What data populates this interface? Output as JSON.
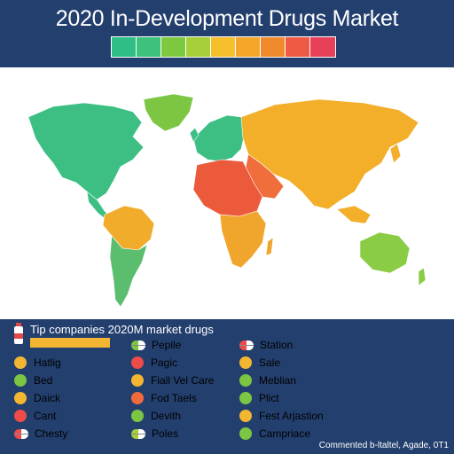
{
  "title": "2020 In-Development Drugs Market",
  "scale_colors": [
    "#2fbf86",
    "#3cc27a",
    "#7cc940",
    "#a6cf3a",
    "#f5c02c",
    "#f4a62a",
    "#f08a2c",
    "#ef5a45",
    "#e9405a"
  ],
  "region_colors": {
    "north_america": "#3dbf84",
    "greenland": "#7cc644",
    "south_america_north": "#f2ac2c",
    "south_america_south": "#5bbd6e",
    "europe": "#3dbf84",
    "russia_asia": "#f3ae2a",
    "middle_east": "#ef6e3c",
    "africa_north": "#ec5a3c",
    "africa_south": "#f0a52c",
    "australia": "#8acc44"
  },
  "legend": {
    "heading": "Tip companies 2020M market drugs",
    "items": [
      {
        "label": "Hatlig",
        "icon": "dot",
        "color": "#f2b632"
      },
      {
        "label": "Bed",
        "icon": "dot",
        "color": "#7cc644"
      },
      {
        "label": "Daick",
        "icon": "dot",
        "color": "#f2b632"
      },
      {
        "label": "Cant",
        "icon": "dot",
        "color": "#ee4b4b"
      },
      {
        "label": "Chesty",
        "icon": "pill",
        "color": "#ee4b4b"
      },
      {
        "label": "Pepile",
        "icon": "pill",
        "color": "#7cc644"
      },
      {
        "label": "Pagic",
        "icon": "dot",
        "color": "#ee4b4b"
      },
      {
        "label": "Fiall Vel Care",
        "icon": "dot",
        "color": "#f2b632"
      },
      {
        "label": "Fod Taels",
        "icon": "dot",
        "color": "#f06a3c"
      },
      {
        "label": "Devith",
        "icon": "dot",
        "color": "#7cc644"
      },
      {
        "label": "Poles",
        "icon": "pill",
        "color": "#a6cf3a"
      },
      {
        "label": "Station",
        "icon": "pill",
        "color": "#ee4b4b"
      },
      {
        "label": "Sale",
        "icon": "dot",
        "color": "#f2b632"
      },
      {
        "label": "Meblian",
        "icon": "dot",
        "color": "#7cc644"
      },
      {
        "label": "Plict",
        "icon": "dot",
        "color": "#7cc644"
      },
      {
        "label": "Fest Arjastion",
        "icon": "dot",
        "color": "#f2b632"
      },
      {
        "label": "Campriace",
        "icon": "dot",
        "color": "#7cc644"
      }
    ]
  },
  "credit": "Commented b-ltaltel, Agade, 0T1"
}
